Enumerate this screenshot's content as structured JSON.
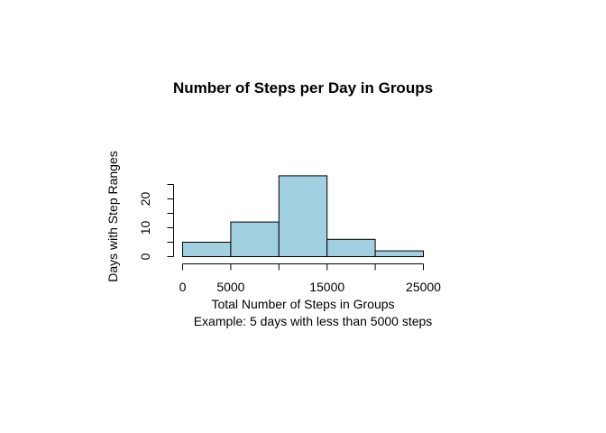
{
  "chart_data": {
    "type": "bar",
    "title": "Number of Steps per Day in Groups",
    "xlabel": "Total Number of Steps in Groups",
    "ylabel": "Days with Step Ranges",
    "subtitle": "Example: 5 days with less than 5000 steps",
    "bins": [
      {
        "from": 0,
        "to": 5000,
        "value": 5
      },
      {
        "from": 5000,
        "to": 10000,
        "value": 12
      },
      {
        "from": 10000,
        "to": 15000,
        "value": 28
      },
      {
        "from": 15000,
        "to": 20000,
        "value": 6
      },
      {
        "from": 20000,
        "to": 25000,
        "value": 2
      }
    ],
    "xlim": [
      0,
      25000
    ],
    "ylim": [
      0,
      28
    ],
    "x_ticks": [
      0,
      5000,
      10000,
      15000,
      20000,
      25000
    ],
    "x_tick_labels": [
      "0",
      "5000",
      "",
      "15000",
      "",
      "25000"
    ],
    "y_ticks": [
      0,
      5,
      10,
      15,
      20,
      25
    ],
    "y_tick_labels": [
      "0",
      "",
      "10",
      "",
      "20",
      ""
    ],
    "grid": false,
    "bar_color": "#a0d0e0"
  }
}
